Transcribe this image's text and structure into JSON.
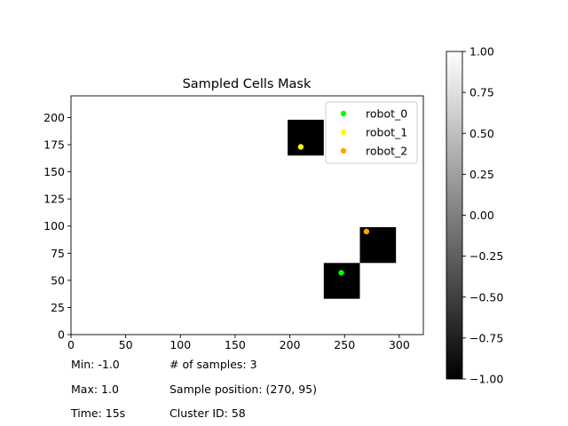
{
  "chart_data": {
    "type": "heatmap",
    "title": "Sampled Cells Mask",
    "xlabel": "",
    "ylabel": "",
    "xlim": [
      0,
      322
    ],
    "ylim": [
      0,
      220
    ],
    "xticks": [
      0,
      50,
      100,
      150,
      200,
      250,
      300
    ],
    "yticks": [
      0,
      25,
      50,
      75,
      100,
      125,
      150,
      175,
      200
    ],
    "background_value": 1.0,
    "cells": [
      {
        "x0": 198,
        "x1": 231,
        "y0": 165,
        "y1": 198,
        "value": -1.0
      },
      {
        "x0": 231,
        "x1": 264,
        "y0": 33,
        "y1": 66,
        "value": -1.0
      },
      {
        "x0": 264,
        "x1": 297,
        "y0": 66,
        "y1": 99,
        "value": -1.0
      }
    ],
    "series": [
      {
        "name": "robot_0",
        "color": "#00ff00",
        "points": [
          [
            247,
            57
          ]
        ]
      },
      {
        "name": "robot_1",
        "color": "#ffff00",
        "points": [
          [
            210,
            173
          ]
        ]
      },
      {
        "name": "robot_2",
        "color": "#ffa500",
        "points": [
          [
            270,
            95
          ]
        ]
      }
    ],
    "legend_position": "top-right",
    "grid": false,
    "colorbar": {
      "range": [
        -1.0,
        1.0
      ],
      "ticks": [
        "1.00",
        "0.75",
        "0.50",
        "0.25",
        "0.00",
        "−0.25",
        "−0.50",
        "−0.75",
        "−1.00"
      ],
      "colormap": "gray"
    }
  },
  "info": {
    "min": "Min: -1.0",
    "max": "Max: 1.0",
    "time": "Time: 15s",
    "samples": "# of samples: 3",
    "sample_position": "Sample position: (270, 95)",
    "cluster_id": "Cluster ID: 58"
  }
}
